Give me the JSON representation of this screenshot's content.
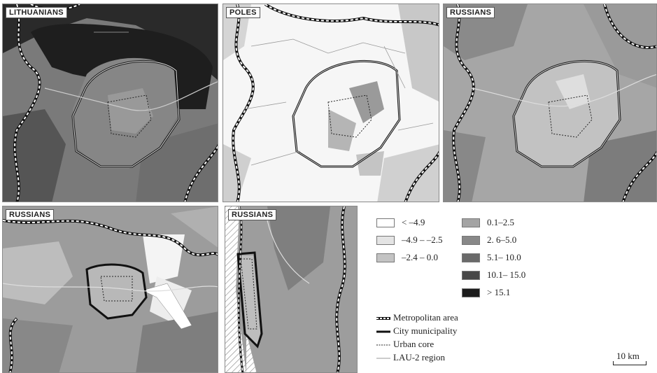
{
  "panels": [
    {
      "title": "LITHUANIANS"
    },
    {
      "title": "POLES"
    },
    {
      "title": "RUSSIANS"
    },
    {
      "title": "RUSSIANS"
    },
    {
      "title": "RUSSIANS"
    }
  ],
  "legend": {
    "classes": [
      {
        "label": "< –4.9",
        "color": "#ffffff"
      },
      {
        "label": "–4.9 – –2.5",
        "color": "#e4e4e4"
      },
      {
        "label": "–2.4 – 0.0",
        "color": "#c3c3c3"
      },
      {
        "label": "0.1–2.5",
        "color": "#a4a4a4"
      },
      {
        "label": "2. 6–5.0",
        "color": "#888888"
      },
      {
        "label": "5.1– 10.0",
        "color": "#6a6a6a"
      },
      {
        "label": "10.1– 15.0",
        "color": "#474747"
      },
      {
        "label": "> 15.1",
        "color": "#1c1c1c"
      }
    ],
    "lines": [
      {
        "label": "Metropolitan area"
      },
      {
        "label": "City municipality"
      },
      {
        "label": "Urban core"
      },
      {
        "label": "LAU-2 region"
      }
    ]
  },
  "scale": {
    "label": "10 km"
  }
}
